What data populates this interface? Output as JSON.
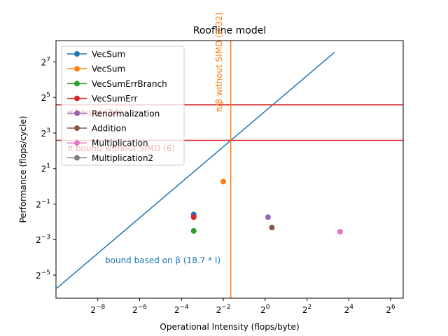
{
  "chart_data": {
    "type": "scatter",
    "title": "Roofline model",
    "xlabel": "Operational Intensity (flops/byte)",
    "ylabel": "Performance (flops/cycle)",
    "scale": "log2",
    "xlim_log2": [
      -10,
      6.6
    ],
    "ylim_log2": [
      -6.3,
      8.2
    ],
    "x_ticks_log2": [
      -8,
      -6,
      -4,
      -2,
      0,
      2,
      4,
      6
    ],
    "y_ticks_log2": [
      -5,
      -3,
      -1,
      1,
      3,
      5,
      7
    ],
    "grid": false,
    "legend_position": "upper-left",
    "series": [
      {
        "name": "VecSum",
        "color": "#1f77b4",
        "x": 0.09375,
        "y": 0.333
      },
      {
        "name": "VecSum",
        "color": "#ff7f0e",
        "x": 0.25,
        "y": 1.2
      },
      {
        "name": "VecSumErrBranch",
        "color": "#2ca02c",
        "x": 0.09375,
        "y": 0.175
      },
      {
        "name": "VecSumErr",
        "color": "#d62728",
        "x": 0.09375,
        "y": 0.3
      },
      {
        "name": "Renormalization",
        "color": "#9467bd",
        "x": 1.1,
        "y": 0.3
      },
      {
        "name": "Addition",
        "color": "#8c564b",
        "x": 1.25,
        "y": 0.2
      },
      {
        "name": "Multiplication",
        "color": "#e377c2",
        "x": 12.0,
        "y": 0.17
      },
      {
        "name": "Multiplication2",
        "color": "#7f7f7f",
        "x": null,
        "y": null
      }
    ],
    "bandwidth_roof": {
      "label": "bound based on β (18.7 * I)",
      "slope": 18.7,
      "color": "#1f77b4",
      "x_range": [
        0.001,
        10
      ]
    },
    "compute_roofs": [
      {
        "label": "π bound (24)",
        "value": 24,
        "color": "#d62728"
      },
      {
        "label": "π bound without SIMD (6)",
        "value": 6,
        "color": "#d62728"
      }
    ],
    "ridge_line": {
      "label": "π/β without SIMD (0.32)",
      "value": 0.32,
      "color": "#ff7f0e"
    }
  }
}
